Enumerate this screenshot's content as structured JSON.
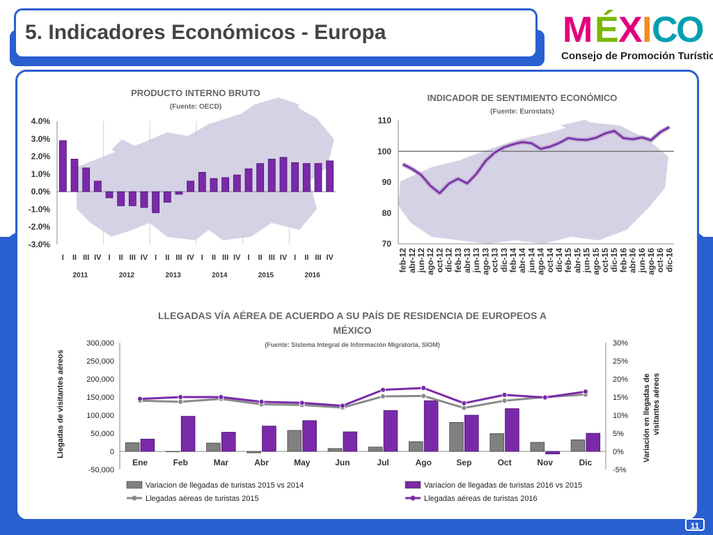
{
  "header": {
    "title": "5. Indicadores Económicos - Europa",
    "brand_letters": [
      "M",
      "É",
      "X",
      "I",
      "C",
      "O"
    ],
    "brand_subtitle": "Consejo de Promoción Turística",
    "page_number": "11"
  },
  "colors": {
    "accent_blue": "#2a5fd0",
    "bar_purple": "#7a2aa8",
    "bar_gray": "#808080",
    "line_2016": "#7a2aa8",
    "line_2015": "#8a8a8a",
    "map_fill": "#d6d2e6",
    "brand_letter_colors": [
      "#e4007c",
      "#7ab800",
      "#e4007c",
      "#f28c28",
      "#00a0b0",
      "#00a0b0"
    ]
  },
  "chart_data": [
    {
      "type": "bar",
      "title": "PRODUCTO INTERNO BRUTO",
      "subtitle": "(Fuente: OECD)",
      "categories": [
        "I",
        "II",
        "III",
        "IV",
        "I",
        "II",
        "III",
        "IV",
        "I",
        "II",
        "III",
        "IV",
        "I",
        "II",
        "III",
        "IV",
        "I",
        "II",
        "III",
        "IV",
        "I",
        "II",
        "III",
        "IV"
      ],
      "groups": [
        "2011",
        "2012",
        "2013",
        "2014",
        "2015",
        "2016"
      ],
      "values": [
        2.9,
        1.85,
        1.35,
        0.6,
        -0.35,
        -0.8,
        -0.8,
        -0.9,
        -1.2,
        -0.6,
        -0.15,
        0.6,
        1.1,
        0.75,
        0.8,
        0.95,
        1.3,
        1.6,
        1.85,
        1.95,
        1.65,
        1.6,
        1.6,
        1.75
      ],
      "yticks": [
        "4.0%",
        "3.0%",
        "2.0%",
        "1.0%",
        "0.0%",
        "-1.0%",
        "-2.0%",
        "-3.0%"
      ],
      "ylim": [
        -3,
        4
      ]
    },
    {
      "type": "line",
      "title": "INDICADOR DE SENTIMIENTO ECONÓMICO",
      "subtitle": "(Fuente: Eurostats)",
      "x_labels": [
        "feb-12",
        "abr-12",
        "jun-12",
        "ago-12",
        "oct-12",
        "dic-12",
        "feb-13",
        "abr-13",
        "jun-13",
        "ago-13",
        "oct-13",
        "dic-13",
        "feb-14",
        "abr-14",
        "jun-14",
        "ago-14",
        "oct-14",
        "dic-14",
        "feb-15",
        "abr-15",
        "jun-15",
        "ago-15",
        "oct-15",
        "dic-15",
        "feb-16",
        "abr-16",
        "jun-16",
        "ago-16",
        "oct-16",
        "dic-16"
      ],
      "values": [
        95.8,
        94.3,
        92.3,
        88.8,
        86.4,
        89.5,
        91.1,
        89.6,
        92.7,
        96.9,
        99.6,
        101.3,
        102.3,
        103.0,
        102.6,
        100.8,
        101.5,
        102.7,
        104.3,
        103.8,
        103.7,
        104.4,
        105.8,
        106.6,
        104.3,
        103.9,
        104.5,
        103.6,
        106.2,
        107.9
      ],
      "yticks": [
        "110",
        "100",
        "90",
        "80",
        "70"
      ],
      "ylim": [
        70,
        110
      ],
      "reference_line": 100
    },
    {
      "type": "bar",
      "title": "LLEGADAS VÍA AÉREA DE ACUERDO A SU PAÍS DE RESIDENCIA DE EUROPEOS A",
      "title_line2": "MÉXICO",
      "subtitle": "(Fuente: Sistema Integral de Información Migratoria, SIOM)",
      "categories": [
        "Ene",
        "Feb",
        "Mar",
        "Abr",
        "May",
        "Jun",
        "Jul",
        "Ago",
        "Sep",
        "Oct",
        "Nov",
        "Dic"
      ],
      "ylabel": "Llegadas de visitantes aéreos",
      "y2label_line1": "Variación en llegadas de",
      "y2label_line2": "visitantes aéreos",
      "yticks": [
        "300,000",
        "250,000",
        "200,000",
        "150,000",
        "100,000",
        "50,000",
        "0",
        "-50,000"
      ],
      "y2ticks": [
        "30%",
        "25%",
        "20%",
        "15%",
        "10%",
        "5%",
        "0%",
        "-5%"
      ],
      "ylim": [
        -50000,
        300000
      ],
      "y2lim": [
        -0.05,
        0.3
      ],
      "series": [
        {
          "name": "Variacion de llegadas de turistas  2015 vs 2014",
          "kind": "bar",
          "axis": "right",
          "values": [
            0.024,
            -0.001,
            0.023,
            -0.004,
            0.058,
            0.008,
            0.012,
            0.027,
            0.08,
            0.049,
            0.025,
            0.032
          ]
        },
        {
          "name": "Variacion de llegadas de turistas  2016 vs 2015",
          "kind": "bar",
          "axis": "right",
          "values": [
            0.034,
            0.097,
            0.053,
            0.07,
            0.085,
            0.054,
            0.113,
            0.14,
            0.1,
            0.118,
            -0.007,
            0.05
          ]
        },
        {
          "name": "Llegadas aéreas de turistas 2015",
          "kind": "line",
          "axis": "left",
          "values": [
            140000,
            137000,
            145000,
            130000,
            128000,
            121000,
            152000,
            153000,
            120000,
            140000,
            150000,
            157000
          ]
        },
        {
          "name": "Llegadas aéreas de turistas 2016",
          "kind": "line",
          "axis": "left",
          "values": [
            145000,
            150000,
            150000,
            137000,
            134000,
            126000,
            170000,
            175000,
            133000,
            156000,
            149000,
            165000
          ]
        }
      ]
    }
  ]
}
